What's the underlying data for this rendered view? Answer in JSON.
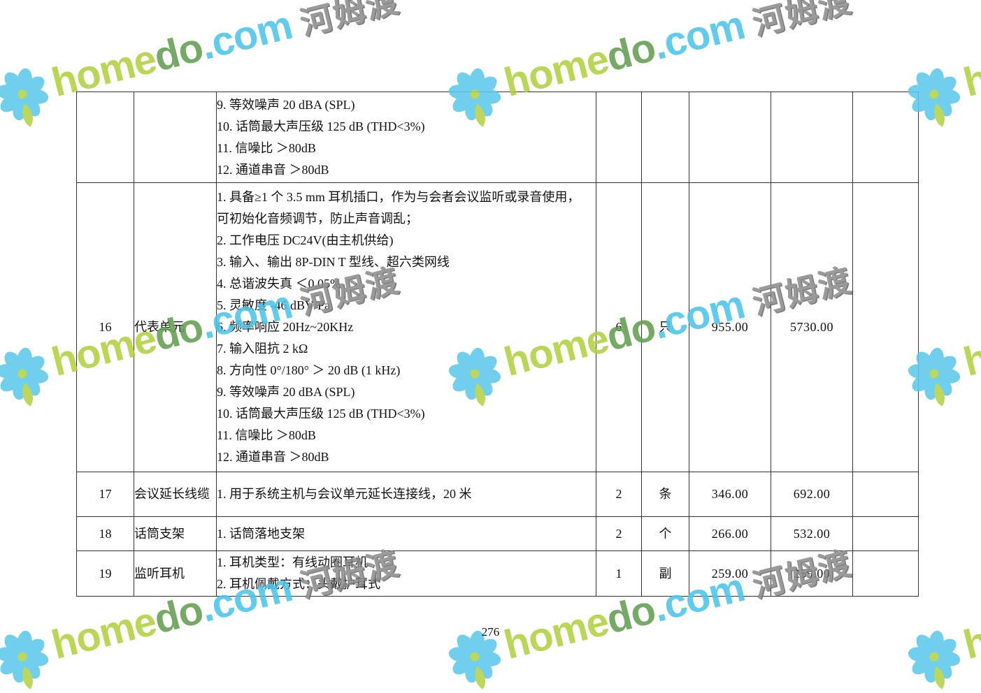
{
  "page": {
    "number": "276"
  },
  "watermark": {
    "brand_home": "home",
    "brand_do": "do",
    "brand_domain": ".com",
    "brand_cjk": "河姆渡",
    "colors": {
      "green_light": "#b0d13e",
      "green_dark": "#629f4f",
      "cyan": "#49c5ec",
      "gray": "#8d8d8d",
      "petal_blue": "#5ec9ec",
      "leaf_green": "#b4d244"
    }
  },
  "table": {
    "rows": [
      {
        "no": "",
        "name": "",
        "desc_lines": [
          "9. 等效噪声  20 dBA (SPL)",
          "10. 话筒最大声压级 125 dB (THD<3%)",
          "11. 信噪比 ＞80dB",
          "12. 通道串音 ＞80dB"
        ],
        "qty": "",
        "unit": "",
        "unit_price": "",
        "total_price": "",
        "remark": ""
      },
      {
        "no": "16",
        "name": "代表单元",
        "desc_lines": [
          "1. 具备≥1 个 3.5 mm 耳机插口，作为与会者会议监听或录音使用，",
          "可初始化音频调节，防止声音调乱；",
          "2. 工作电压 DC24V(由主机供给)",
          "3. 输入、输出 8P-DIN T 型线、超六类网线",
          "4. 总谐波失真 ＜0.05%",
          "5. 灵敏度 -46 dBV/Pa",
          "6. 频率响应 20Hz~20KHz",
          "7. 输入阻抗 2 kΩ",
          "8. 方向性 0°/180°  ＞ 20 dB (1 kHz)",
          "9. 等效噪声  20 dBA (SPL)",
          "10. 话筒最大声压级 125 dB (THD<3%)",
          "11. 信噪比 ＞80dB",
          "12. 通道串音 ＞80dB"
        ],
        "qty": "6",
        "unit": "只",
        "unit_price": "955.00",
        "total_price": "5730.00",
        "remark": ""
      },
      {
        "no": "17",
        "name": "会议延长线缆",
        "desc_lines": [
          "1. 用于系统主机与会议单元延长连接线，20 米"
        ],
        "qty": "2",
        "unit": "条",
        "unit_price": "346.00",
        "total_price": "692.00",
        "remark": ""
      },
      {
        "no": "18",
        "name": "话筒支架",
        "desc_lines": [
          "1. 话筒落地支架"
        ],
        "qty": "2",
        "unit": "个",
        "unit_price": "266.00",
        "total_price": "532.00",
        "remark": ""
      },
      {
        "no": "19",
        "name": "监听耳机",
        "desc_lines": [
          "1. 耳机类型：有线动圈耳机",
          "2. 耳机佩戴方式：头戴护耳式"
        ],
        "qty": "1",
        "unit": "副",
        "unit_price": "259.00",
        "total_price": "259.00",
        "remark": ""
      }
    ]
  }
}
